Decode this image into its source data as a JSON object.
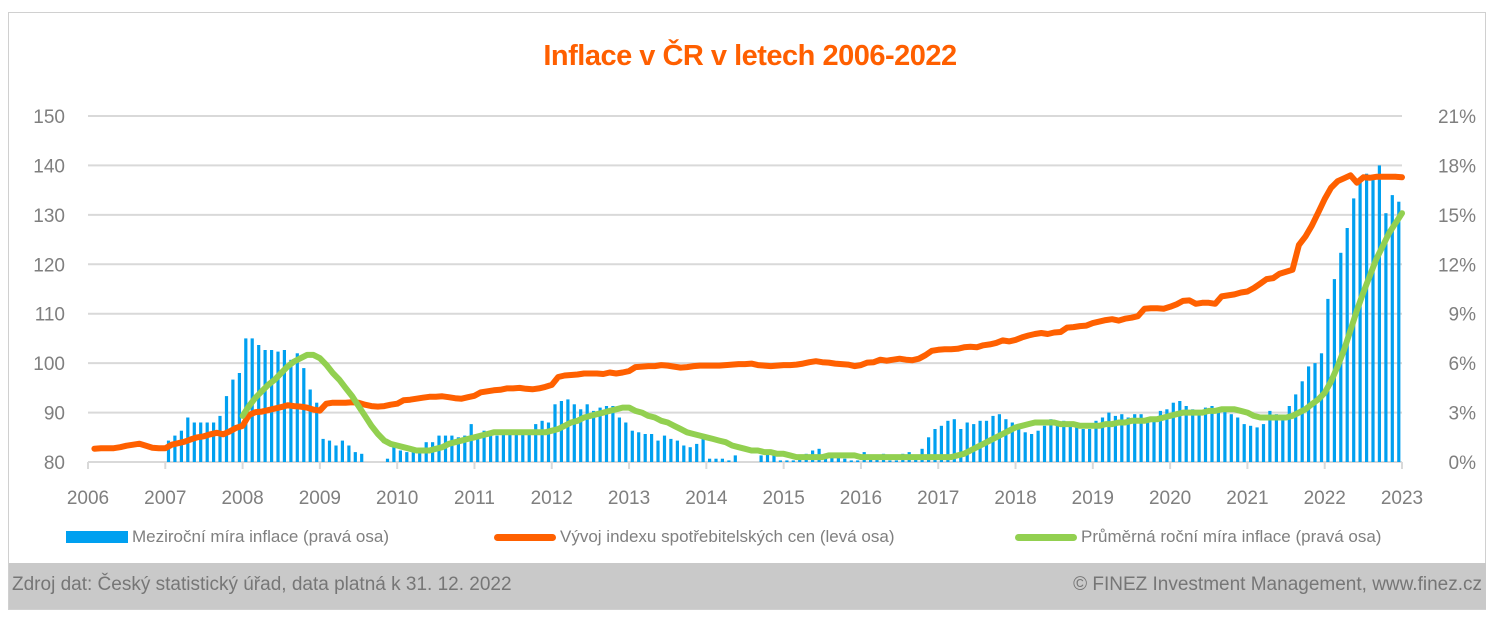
{
  "chart_data": {
    "type": "bar+line",
    "title": "Inflace v ČR v letech 2006-2022",
    "xlabel": "",
    "x_ticks": [
      "2006",
      "2007",
      "2008",
      "2009",
      "2010",
      "2011",
      "2012",
      "2013",
      "2014",
      "2015",
      "2016",
      "2017",
      "2018",
      "2019",
      "2020",
      "2021",
      "2022",
      "2023"
    ],
    "x_range": [
      2006,
      2023
    ],
    "left_axis": {
      "label": "",
      "ticks": [
        "80",
        "90",
        "100",
        "110",
        "120",
        "130",
        "140",
        "150"
      ],
      "range": [
        80,
        150
      ]
    },
    "right_axis": {
      "label": "",
      "ticks": [
        "0%",
        "3%",
        "6%",
        "9%",
        "12%",
        "15%",
        "18%",
        "21%"
      ],
      "range": [
        0,
        21
      ]
    },
    "grid": true,
    "legend_position": "bottom",
    "series": [
      {
        "name": "Meziroční míra inflace (pravá osa)",
        "type": "bar",
        "axis": "right",
        "color": "#00A0F0",
        "start": "2007-01",
        "values": [
          1.3,
          1.6,
          1.9,
          2.7,
          2.4,
          2.4,
          2.4,
          2.4,
          2.8,
          4.0,
          5.0,
          5.4,
          7.5,
          7.5,
          7.1,
          6.8,
          6.8,
          6.7,
          6.8,
          6.2,
          6.6,
          5.7,
          4.4,
          3.6,
          1.4,
          1.3,
          1.0,
          1.3,
          1.0,
          0.6,
          0.5,
          0.0,
          -0.1,
          -0.2,
          0.2,
          1.0,
          0.7,
          0.6,
          0.7,
          0.8,
          1.2,
          1.2,
          1.6,
          1.6,
          1.6,
          1.5,
          1.6,
          2.3,
          1.7,
          1.9,
          1.7,
          1.6,
          1.7,
          1.8,
          1.7,
          1.7,
          1.8,
          2.3,
          2.5,
          2.4,
          3.5,
          3.7,
          3.8,
          3.5,
          3.2,
          3.5,
          3.1,
          3.3,
          3.4,
          3.4,
          2.7,
          2.4,
          1.9,
          1.8,
          1.7,
          1.7,
          1.3,
          1.6,
          1.4,
          1.3,
          1.0,
          0.9,
          1.1,
          1.4,
          0.2,
          0.2,
          0.2,
          0.1,
          0.4,
          0.0,
          0.0,
          0.0,
          0.4,
          0.6,
          0.5,
          0.1,
          0.1,
          0.1,
          0.2,
          0.5,
          0.7,
          0.8,
          0.5,
          0.3,
          0.4,
          0.2,
          0.1,
          0.1,
          0.6,
          0.4,
          0.3,
          0.5,
          0.1,
          0.1,
          0.5,
          0.6,
          0.4,
          0.8,
          1.5,
          2.0,
          2.2,
          2.5,
          2.6,
          2.0,
          2.4,
          2.3,
          2.5,
          2.5,
          2.8,
          2.9,
          2.6,
          2.4,
          2.2,
          1.8,
          1.7,
          1.9,
          2.2,
          2.6,
          2.3,
          2.5,
          2.3,
          2.2,
          2.0,
          2.0,
          2.5,
          2.7,
          3.0,
          2.8,
          2.9,
          2.7,
          2.9,
          2.9,
          2.7,
          2.7,
          3.1,
          3.2,
          3.6,
          3.7,
          3.4,
          3.2,
          2.9,
          3.3,
          3.4,
          3.3,
          3.2,
          2.9,
          2.7,
          2.3,
          2.2,
          2.1,
          2.3,
          3.1,
          2.9,
          2.8,
          3.4,
          4.1,
          4.9,
          5.8,
          6.0,
          6.6,
          9.9,
          11.1,
          12.7,
          14.2,
          16.0,
          17.2,
          17.5,
          17.2,
          18.0,
          15.1,
          16.2,
          15.8
        ]
      },
      {
        "name": "Vývoj indexu spotřebitelských cen (levá osa)",
        "type": "line",
        "axis": "left",
        "color": "#FF6000",
        "start": "2006-01",
        "values": [
          82.7,
          82.8,
          82.8,
          82.8,
          83.0,
          83.3,
          83.5,
          83.7,
          83.3,
          82.9,
          82.8,
          82.8,
          83.5,
          83.8,
          84.1,
          84.6,
          85.0,
          85.2,
          85.6,
          85.9,
          85.6,
          86.2,
          86.9,
          87.3,
          89.5,
          90.1,
          90.2,
          90.5,
          90.8,
          91.1,
          91.5,
          91.3,
          91.2,
          91.0,
          90.6,
          90.4,
          91.8,
          92.0,
          92.0,
          92.0,
          92.1,
          92.0,
          91.6,
          91.3,
          91.2,
          91.3,
          91.6,
          91.8,
          92.5,
          92.6,
          92.8,
          93.0,
          93.2,
          93.2,
          93.3,
          93.1,
          92.9,
          92.8,
          93.1,
          93.4,
          94.1,
          94.3,
          94.5,
          94.6,
          94.9,
          94.9,
          95.0,
          94.8,
          94.7,
          94.9,
          95.2,
          95.6,
          97.2,
          97.5,
          97.6,
          97.7,
          97.9,
          97.9,
          97.9,
          97.8,
          98.1,
          97.9,
          98.1,
          98.4,
          99.2,
          99.3,
          99.4,
          99.4,
          99.6,
          99.5,
          99.3,
          99.1,
          99.2,
          99.4,
          99.5,
          99.5,
          99.5,
          99.5,
          99.6,
          99.7,
          99.8,
          99.8,
          99.9,
          99.6,
          99.5,
          99.4,
          99.5,
          99.6,
          99.6,
          99.7,
          99.9,
          100.2,
          100.4,
          100.2,
          100.1,
          99.9,
          99.8,
          99.7,
          99.4,
          99.6,
          100.1,
          100.2,
          100.7,
          100.5,
          100.7,
          100.9,
          100.7,
          100.6,
          100.9,
          101.6,
          102.5,
          102.7,
          102.8,
          102.8,
          102.9,
          103.2,
          103.3,
          103.2,
          103.6,
          103.8,
          104.1,
          104.6,
          104.4,
          104.7,
          105.2,
          105.6,
          105.9,
          106.1,
          105.9,
          106.2,
          106.3,
          107.2,
          107.3,
          107.5,
          107.6,
          108.1,
          108.4,
          108.7,
          108.9,
          108.6,
          109.0,
          109.2,
          109.5,
          111.0,
          111.1,
          111.1,
          111.0,
          111.4,
          111.9,
          112.6,
          112.7,
          112.0,
          112.2,
          112.2,
          112.0,
          113.5,
          113.7,
          113.9,
          114.3,
          114.5,
          115.2,
          116.1,
          117.0,
          117.2,
          118.1,
          118.5,
          118.9,
          123.9,
          125.6,
          127.8,
          130.5,
          133.2,
          135.5,
          136.8,
          137.4,
          138.0,
          136.5,
          137.6,
          137.5,
          137.7,
          137.7,
          137.7,
          137.7,
          137.6
        ]
      },
      {
        "name": "Průměrná roční míra inflace (pravá osa)",
        "type": "line",
        "axis": "right",
        "color": "#92D050",
        "start": "2007-12",
        "values": [
          2.8,
          3.4,
          3.9,
          4.3,
          4.7,
          5.0,
          5.4,
          5.8,
          6.1,
          6.3,
          6.5,
          6.5,
          6.3,
          5.9,
          5.4,
          5.0,
          4.5,
          4.0,
          3.4,
          2.8,
          2.2,
          1.7,
          1.3,
          1.1,
          1.0,
          0.9,
          0.8,
          0.7,
          0.7,
          0.7,
          0.8,
          0.9,
          1.1,
          1.2,
          1.3,
          1.4,
          1.5,
          1.6,
          1.7,
          1.8,
          1.8,
          1.8,
          1.8,
          1.8,
          1.8,
          1.8,
          1.8,
          1.8,
          1.9,
          2.0,
          2.2,
          2.4,
          2.5,
          2.7,
          2.8,
          2.9,
          3.0,
          3.1,
          3.2,
          3.3,
          3.3,
          3.1,
          3.0,
          2.8,
          2.7,
          2.5,
          2.4,
          2.2,
          2.0,
          1.8,
          1.7,
          1.6,
          1.5,
          1.4,
          1.3,
          1.2,
          1.0,
          0.9,
          0.8,
          0.7,
          0.7,
          0.6,
          0.6,
          0.5,
          0.5,
          0.4,
          0.3,
          0.3,
          0.3,
          0.3,
          0.3,
          0.4,
          0.4,
          0.4,
          0.4,
          0.4,
          0.3,
          0.3,
          0.3,
          0.3,
          0.3,
          0.3,
          0.3,
          0.3,
          0.3,
          0.3,
          0.3,
          0.3,
          0.3,
          0.3,
          0.3,
          0.4,
          0.5,
          0.7,
          0.9,
          1.1,
          1.3,
          1.5,
          1.7,
          1.9,
          2.1,
          2.2,
          2.3,
          2.4,
          2.4,
          2.4,
          2.4,
          2.3,
          2.3,
          2.3,
          2.2,
          2.2,
          2.2,
          2.2,
          2.3,
          2.3,
          2.4,
          2.4,
          2.5,
          2.5,
          2.5,
          2.6,
          2.6,
          2.7,
          2.8,
          2.9,
          3.0,
          3.0,
          3.0,
          3.0,
          3.1,
          3.1,
          3.2,
          3.2,
          3.2,
          3.1,
          3.0,
          2.8,
          2.7,
          2.7,
          2.7,
          2.7,
          2.7,
          2.8,
          3.0,
          3.2,
          3.5,
          3.8,
          4.2,
          4.9,
          5.8,
          6.8,
          8.0,
          9.2,
          10.3,
          11.3,
          12.3,
          13.1,
          13.9,
          14.5,
          15.1
        ]
      }
    ]
  },
  "legend": {
    "bars": "Meziroční míra inflace (pravá osa)",
    "cpi": "Vývoj indexu spotřebitelských cen (levá osa)",
    "avg": "Průměrná roční míra inflace (pravá osa)"
  },
  "footer": {
    "source": "Zdroj dat: Český statistický úřad, data platná k 31. 12. 2022",
    "copyright": "© FINEZ Investment Management, www.finez.cz"
  }
}
